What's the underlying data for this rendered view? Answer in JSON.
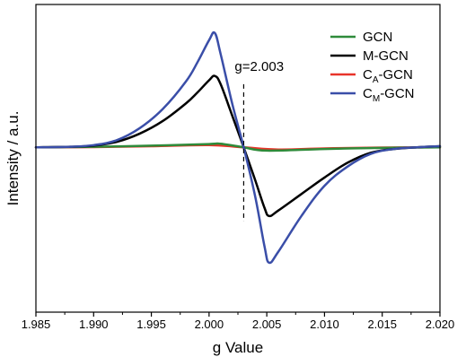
{
  "chart_data": {
    "type": "line",
    "xlabel": "g Value",
    "ylabel": "Intensity / a.u.",
    "xlim": [
      1.985,
      2.02
    ],
    "ylim": [
      -3.0,
      2.6
    ],
    "xticks": [
      "1.985",
      "1.990",
      "1.995",
      "2.000",
      "2.005",
      "2.010",
      "2.015",
      "2.020"
    ],
    "xtick_values": [
      1.985,
      1.99,
      1.995,
      2.0,
      2.005,
      2.01,
      2.015,
      2.02
    ],
    "legend_position": "top-right",
    "annotation": {
      "text": "g=2.003",
      "g": 2.003,
      "y_range": [
        -1.35,
        1.15
      ]
    },
    "series": [
      {
        "name": "GCN",
        "name_main": "GCN",
        "name_sub": "",
        "name_suffix": "",
        "color": "#2e8b3a",
        "x": [
          1.985,
          1.99,
          1.995,
          2.0,
          2.001,
          2.003,
          2.005,
          2.01,
          2.015,
          2.02
        ],
        "y": [
          0.0,
          0.01,
          0.03,
          0.06,
          0.065,
          0.0,
          -0.06,
          -0.03,
          -0.01,
          0.0
        ]
      },
      {
        "name": "M-GCN",
        "name_main": "M-GCN",
        "name_sub": "",
        "name_suffix": "",
        "color": "#000000",
        "x": [
          1.985,
          1.988,
          1.99,
          1.992,
          1.994,
          1.996,
          1.998,
          1.999,
          2.0,
          2.0005,
          2.001,
          2.002,
          2.003,
          2.004,
          2.0048,
          2.0052,
          2.006,
          2.008,
          2.01,
          2.012,
          2.014,
          2.016,
          2.018,
          2.02
        ],
        "y": [
          0.0,
          0.01,
          0.03,
          0.1,
          0.25,
          0.48,
          0.8,
          1.0,
          1.22,
          1.3,
          1.15,
          0.58,
          0.0,
          -0.6,
          -1.1,
          -1.25,
          -1.15,
          -0.85,
          -0.55,
          -0.28,
          -0.1,
          -0.03,
          0.0,
          0.02
        ]
      },
      {
        "name": "CA-GCN",
        "name_main": "C",
        "name_sub": "A",
        "name_suffix": "-GCN",
        "color": "#e8342a",
        "x": [
          1.985,
          1.99,
          1.995,
          2.0,
          2.003,
          2.006,
          2.01,
          2.015,
          2.02
        ],
        "y": [
          0.0,
          0.005,
          0.02,
          0.04,
          0.0,
          -0.04,
          -0.02,
          -0.005,
          0.0
        ]
      },
      {
        "name": "CM-GCN",
        "name_main": "C",
        "name_sub": "M",
        "name_suffix": "-GCN",
        "color": "#3a4ea8",
        "x": [
          1.985,
          1.988,
          1.99,
          1.992,
          1.994,
          1.996,
          1.998,
          1.999,
          2.0,
          2.0005,
          2.001,
          2.002,
          2.003,
          2.004,
          2.0048,
          2.0052,
          2.006,
          2.008,
          2.01,
          2.012,
          2.014,
          2.016,
          2.018,
          2.02
        ],
        "y": [
          0.0,
          0.01,
          0.04,
          0.13,
          0.35,
          0.7,
          1.2,
          1.55,
          1.95,
          2.08,
          1.7,
          0.8,
          0.0,
          -0.9,
          -1.8,
          -2.1,
          -1.9,
          -1.25,
          -0.7,
          -0.35,
          -0.12,
          -0.03,
          0.0,
          0.02
        ]
      }
    ]
  }
}
